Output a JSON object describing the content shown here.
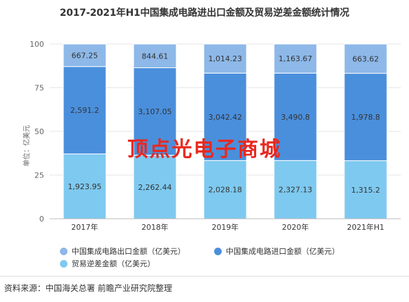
{
  "title": "2017-2021年H1中国集成电路进出口金额及贸易逆差金额统计情况",
  "watermark_text": "顶点光电子商城",
  "source_text": "资料来源：中国海关总署 前瞻产业研究院整理",
  "colors": {
    "export": "#8db8e8",
    "import": "#4a8fdc",
    "deficit": "#7ec9f0",
    "overlay": "#e8281f"
  },
  "chart_data": {
    "type": "bar",
    "stacked": "percent",
    "title": "2017-2021年H1中国集成电路进出口金额及贸易逆差金额统计情况",
    "ylabel": "单位：亿美元",
    "ylim": [
      0,
      100
    ],
    "yticks": [
      0,
      25,
      50,
      75,
      100
    ],
    "grid": true,
    "legend_position": "bottom",
    "categories": [
      "2017年",
      "2018年",
      "2019年",
      "2020年",
      "2021年H1"
    ],
    "series": [
      {
        "name": "贸易逆差金额（亿美元）",
        "color": "#7ec9f0",
        "values": [
          1923.95,
          2262.44,
          2028.18,
          2327.13,
          1315.2
        ],
        "labels": [
          "1,923.95",
          "2,262.44",
          "2,028.18",
          "2,327.13",
          "1,315.2"
        ]
      },
      {
        "name": "中国集成电路进口金额（亿美元）",
        "color": "#4a8fdc",
        "values": [
          2591.2,
          3107.05,
          3042.42,
          3490.8,
          1978.8
        ],
        "labels": [
          "2,591.2",
          "3,107.05",
          "3,042.42",
          "3,490.8",
          "1,978.8"
        ]
      },
      {
        "name": "中国集成电路出口金额（亿美元）",
        "color": "#8db8e8",
        "values": [
          667.25,
          844.61,
          1014.23,
          1163.67,
          663.62
        ],
        "labels": [
          "667.25",
          "844.61",
          "1,014.23",
          "1,163.67",
          "663.62"
        ]
      }
    ],
    "legend": [
      "中国集成电路出口金额（亿美元）",
      "中国集成电路进口金额（亿美元）",
      "贸易逆差金额（亿美元）"
    ]
  }
}
